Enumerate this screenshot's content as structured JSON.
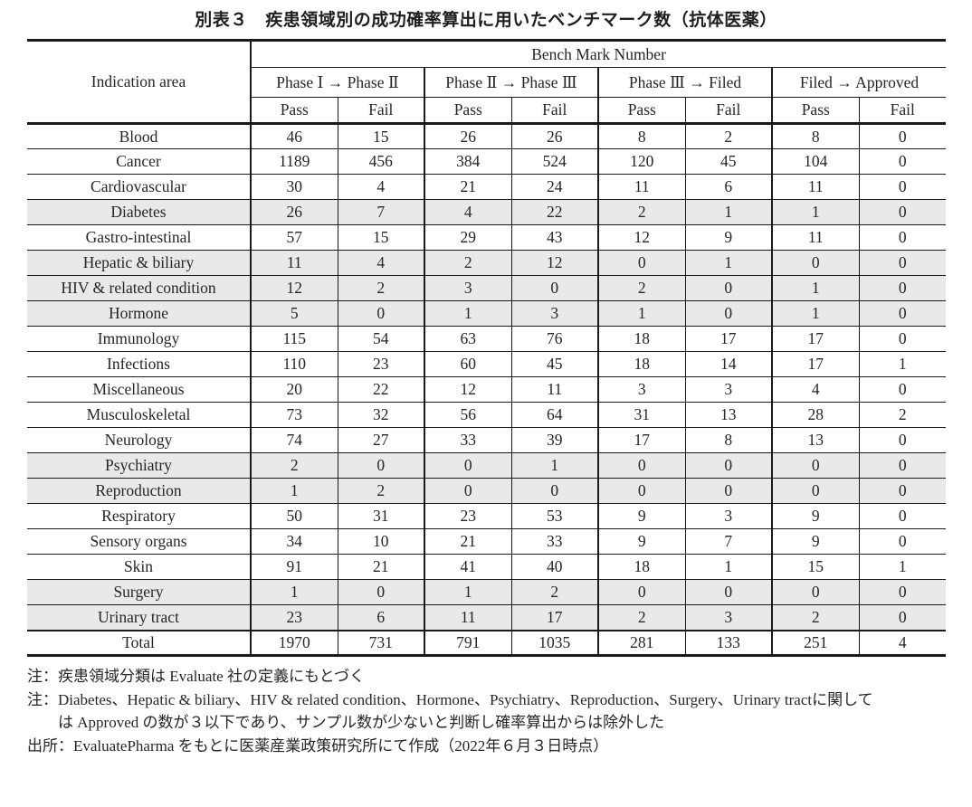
{
  "title": "別表３　疾患領域別の成功確率算出に用いたベンチマーク数（抗体医薬）",
  "table": {
    "corner_header": "Indication area",
    "group_header": "Bench Mark Number",
    "phases": [
      "Phase Ⅰ → Phase Ⅱ",
      "Phase Ⅱ → Phase Ⅲ",
      "Phase Ⅲ → Filed",
      "Filed → Approved"
    ],
    "pass_label": "Pass",
    "fail_label": "Fail",
    "rows": [
      {
        "label": "Blood",
        "values": [
          46,
          15,
          26,
          26,
          8,
          2,
          8,
          0
        ],
        "shaded": false,
        "total": false
      },
      {
        "label": "Cancer",
        "values": [
          1189,
          456,
          384,
          524,
          120,
          45,
          104,
          0
        ],
        "shaded": false,
        "total": false
      },
      {
        "label": "Cardiovascular",
        "values": [
          30,
          4,
          21,
          24,
          11,
          6,
          11,
          0
        ],
        "shaded": false,
        "total": false
      },
      {
        "label": "Diabetes",
        "values": [
          26,
          7,
          4,
          22,
          2,
          1,
          1,
          0
        ],
        "shaded": true,
        "total": false
      },
      {
        "label": "Gastro-intestinal",
        "values": [
          57,
          15,
          29,
          43,
          12,
          9,
          11,
          0
        ],
        "shaded": false,
        "total": false
      },
      {
        "label": "Hepatic & biliary",
        "values": [
          11,
          4,
          2,
          12,
          0,
          1,
          0,
          0
        ],
        "shaded": true,
        "total": false
      },
      {
        "label": "HIV & related condition",
        "values": [
          12,
          2,
          3,
          0,
          2,
          0,
          1,
          0
        ],
        "shaded": true,
        "total": false
      },
      {
        "label": "Hormone",
        "values": [
          5,
          0,
          1,
          3,
          1,
          0,
          1,
          0
        ],
        "shaded": true,
        "total": false
      },
      {
        "label": "Immunology",
        "values": [
          115,
          54,
          63,
          76,
          18,
          17,
          17,
          0
        ],
        "shaded": false,
        "total": false
      },
      {
        "label": "Infections",
        "values": [
          110,
          23,
          60,
          45,
          18,
          14,
          17,
          1
        ],
        "shaded": false,
        "total": false
      },
      {
        "label": "Miscellaneous",
        "values": [
          20,
          22,
          12,
          11,
          3,
          3,
          4,
          0
        ],
        "shaded": false,
        "total": false
      },
      {
        "label": "Musculoskeletal",
        "values": [
          73,
          32,
          56,
          64,
          31,
          13,
          28,
          2
        ],
        "shaded": false,
        "total": false
      },
      {
        "label": "Neurology",
        "values": [
          74,
          27,
          33,
          39,
          17,
          8,
          13,
          0
        ],
        "shaded": false,
        "total": false
      },
      {
        "label": "Psychiatry",
        "values": [
          2,
          0,
          0,
          1,
          0,
          0,
          0,
          0
        ],
        "shaded": true,
        "total": false
      },
      {
        "label": "Reproduction",
        "values": [
          1,
          2,
          0,
          0,
          0,
          0,
          0,
          0
        ],
        "shaded": true,
        "total": false
      },
      {
        "label": "Respiratory",
        "values": [
          50,
          31,
          23,
          53,
          9,
          3,
          9,
          0
        ],
        "shaded": false,
        "total": false
      },
      {
        "label": "Sensory organs",
        "values": [
          34,
          10,
          21,
          33,
          9,
          7,
          9,
          0
        ],
        "shaded": false,
        "total": false
      },
      {
        "label": "Skin",
        "values": [
          91,
          21,
          41,
          40,
          18,
          1,
          15,
          1
        ],
        "shaded": false,
        "total": false
      },
      {
        "label": "Surgery",
        "values": [
          1,
          0,
          1,
          2,
          0,
          0,
          0,
          0
        ],
        "shaded": true,
        "total": false
      },
      {
        "label": "Urinary tract",
        "values": [
          23,
          6,
          11,
          17,
          2,
          3,
          2,
          0
        ],
        "shaded": true,
        "total": false
      },
      {
        "label": "Total",
        "values": [
          1970,
          731,
          791,
          1035,
          281,
          133,
          251,
          4
        ],
        "shaded": false,
        "total": true
      }
    ]
  },
  "notes": [
    {
      "text": "注：疾患領域分類は Evaluate 社の定義にもとづく",
      "indent": false
    },
    {
      "text": "注：Diabetes、Hepatic & biliary、HIV & related condition、Hormone、Psychiatry、Reproduction、Surgery、Urinary tractに関して",
      "indent": false
    },
    {
      "text": "は Approved の数が３以下であり、サンプル数が少ないと判断し確率算出からは除外した",
      "indent": true
    },
    {
      "text": "出所：EvaluatePharma をもとに医薬産業政策研究所にて作成（2022年６月３日時点）",
      "indent": false
    }
  ],
  "colors": {
    "row_shade": "#e9e9e9",
    "rule": "#1a1a1a",
    "text": "#262626"
  }
}
